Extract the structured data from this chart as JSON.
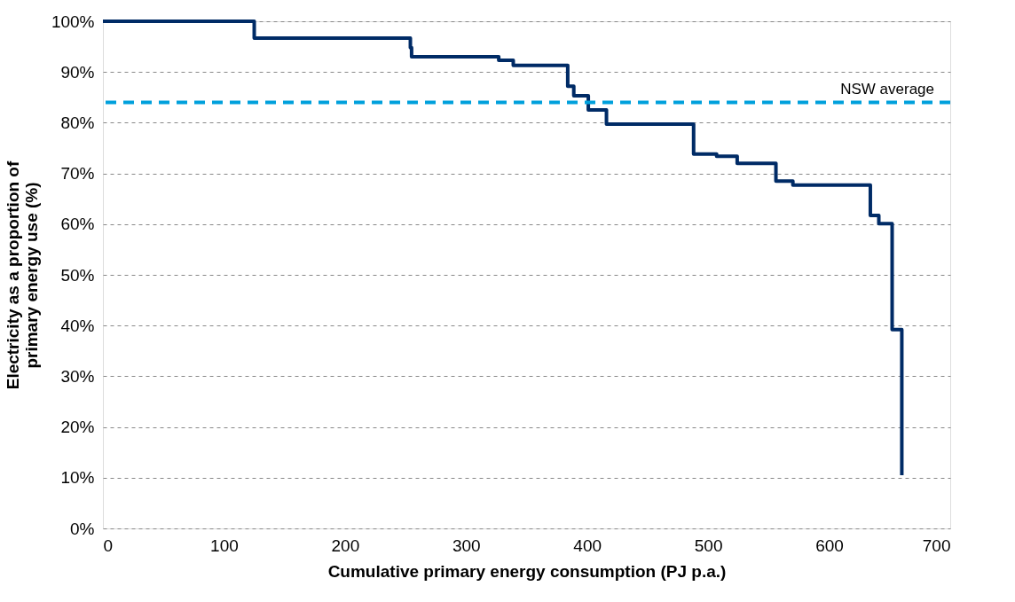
{
  "chart_data": {
    "type": "step",
    "xlabel": "Cumulative primary energy consumption (PJ p.a.)",
    "ylabel": "Electricity as a proportion of\nprimary energy use (%)",
    "x": [
      0,
      125,
      254,
      255,
      327,
      339,
      384,
      389,
      401,
      416,
      488,
      507,
      524,
      556,
      570,
      634,
      641,
      652,
      658,
      660
    ],
    "series": [
      {
        "color": "#002b66",
        "values": [
          100,
          96.7,
          94.8,
          93.0,
          92.3,
          91.3,
          87.2,
          85.3,
          82.5,
          79.7,
          73.8,
          73.4,
          72.0,
          68.5,
          67.7,
          61.7,
          60.1,
          39.2,
          39.2,
          10.5
        ]
      }
    ],
    "xlim": [
      0,
      700
    ],
    "xticks": [
      0,
      100,
      200,
      300,
      400,
      500,
      600,
      700
    ],
    "ylim": [
      0,
      100
    ],
    "yticks": [
      {
        "value": 0,
        "label": "0%"
      },
      {
        "value": 10,
        "label": "10%"
      },
      {
        "value": 20,
        "label": "20%"
      },
      {
        "value": 30,
        "label": "30%"
      },
      {
        "value": 40,
        "label": "40%"
      },
      {
        "value": 50,
        "label": "50%"
      },
      {
        "value": 60,
        "label": "60%"
      },
      {
        "value": 70,
        "label": "70%"
      },
      {
        "value": 80,
        "label": "80%"
      },
      {
        "value": 90,
        "label": "90%"
      },
      {
        "value": 100,
        "label": "100%"
      }
    ],
    "ref_lines": [
      {
        "axis": "y",
        "value": 84,
        "label": "NSW average",
        "color": "#00a0dc",
        "line_style": "dashed"
      }
    ],
    "grid": "y",
    "marker": "none",
    "line_style": "solid"
  }
}
